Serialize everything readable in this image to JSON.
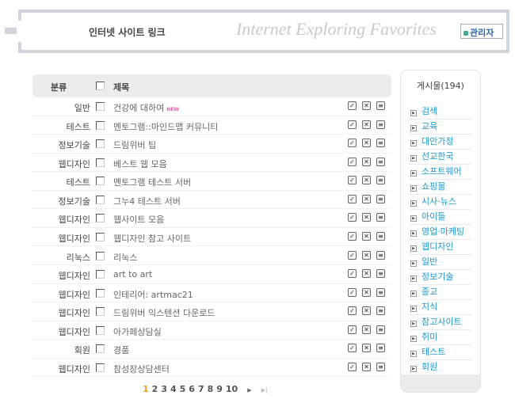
{
  "header": {
    "title": "인터넷 사이트 링크",
    "script_logo": "Internet Exploring Favorites",
    "admin_label": "관리자"
  },
  "table": {
    "col_category": "분류",
    "col_title": "제목",
    "rows": [
      {
        "category": "일반",
        "title": "건강에 대하여",
        "new": "NEW"
      },
      {
        "category": "테스트",
        "title": "멘토그램::마인드맵 커뮤니티"
      },
      {
        "category": "정보기술",
        "title": "드림위버 팁"
      },
      {
        "category": "웹디자인",
        "title": "베스트 웹 모음"
      },
      {
        "category": "테스트",
        "title": "멘토그램 테스트 서버"
      },
      {
        "category": "정보기술",
        "title": "그누4 테스트 서버"
      },
      {
        "category": "웹디자인",
        "title": "웹사이트 모음"
      },
      {
        "category": "웹디자인",
        "title": "웹디자인 참고 사이트"
      },
      {
        "category": "리눅스",
        "title": "리눅스"
      },
      {
        "category": "웹디자인",
        "title": "art to art"
      },
      {
        "category": "웹디자인",
        "title": "인테리어: artmac21"
      },
      {
        "category": "웹디자인",
        "title": "드림위버 익스텐션 다운로드"
      },
      {
        "category": "웹디자인",
        "title": "아가페상담실"
      },
      {
        "category": "회원",
        "title": "경품"
      },
      {
        "category": "웹디자인",
        "title": "참성장상담센터"
      }
    ]
  },
  "pagination": {
    "pages": [
      "1",
      "2",
      "3",
      "4",
      "5",
      "6",
      "7",
      "8",
      "9",
      "10"
    ],
    "current": "1",
    "next": "▶",
    "last": "▶|"
  },
  "sidebar": {
    "title": "게시물(194)",
    "items": [
      "검색",
      "교육",
      "대안가정",
      "선교한국",
      "소프트웨어",
      "쇼핑몰",
      "시사·뉴스",
      "아이들",
      "영업·마케팅",
      "웹디자인",
      "일반",
      "정보기술",
      "종교",
      "지식",
      "참고사이트",
      "취미",
      "테스트",
      "회원"
    ]
  },
  "colors": {
    "accent": "#1a9ad0",
    "current_page": "#f0a020",
    "frame": "#cfd3dc"
  }
}
